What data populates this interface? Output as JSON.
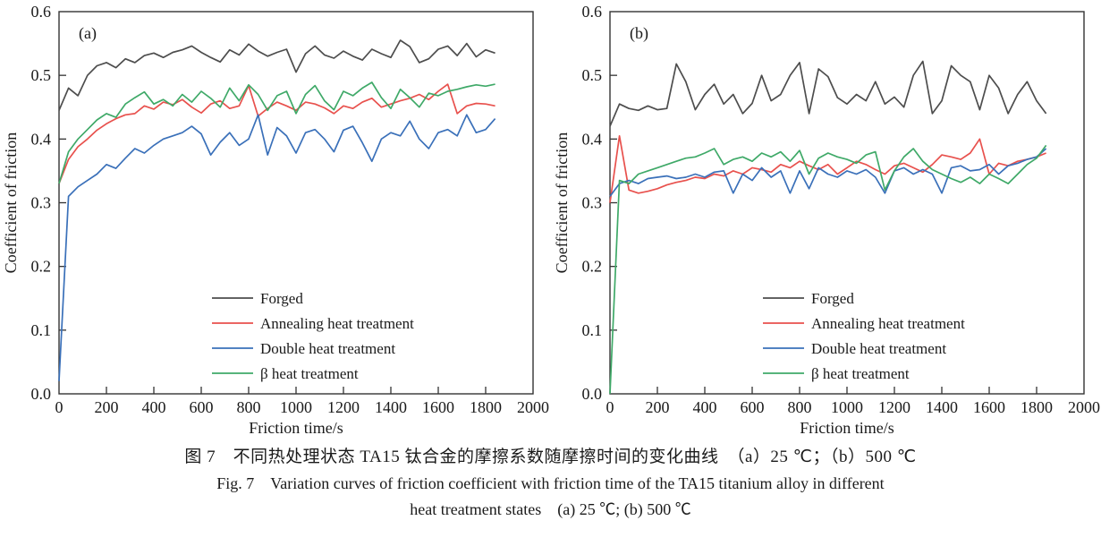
{
  "figure": {
    "caption_zh": "图 7　不同热处理状态 TA15 钛合金的摩擦系数随摩擦时间的变化曲线　（a）25 ℃；（b）500 ℃",
    "caption_en_line1": "Fig. 7　Variation curves of friction coefficient with friction time of the TA15 titanium alloy in different",
    "caption_en_line2": "heat treatment states　(a) 25 ℃; (b) 500 ℃"
  },
  "colors": {
    "axis": "#333333",
    "forged": "#4d4d4d",
    "annealing": "#e8514d",
    "double": "#3a70b9",
    "beta": "#3fa968"
  },
  "chart_data": [
    {
      "type": "line",
      "panel_label": "(a)",
      "xlabel": "Friction time/s",
      "ylabel": "Coefficient of friction",
      "xlim": [
        0,
        2000
      ],
      "ylim": [
        0.0,
        0.6
      ],
      "xticks": [
        0,
        200,
        400,
        600,
        800,
        1000,
        1200,
        1400,
        1600,
        1800,
        2000
      ],
      "yticks": [
        0.0,
        0.1,
        0.2,
        0.3,
        0.4,
        0.5,
        0.6
      ],
      "grid": false,
      "legend_position": "inside-lower-middle",
      "x": [
        0,
        40,
        80,
        120,
        160,
        200,
        240,
        280,
        320,
        360,
        400,
        440,
        480,
        520,
        560,
        600,
        640,
        680,
        720,
        760,
        800,
        840,
        880,
        920,
        960,
        1000,
        1040,
        1080,
        1120,
        1160,
        1200,
        1240,
        1280,
        1320,
        1360,
        1400,
        1440,
        1480,
        1520,
        1560,
        1600,
        1640,
        1680,
        1720,
        1760,
        1800,
        1840
      ],
      "series": [
        {
          "name": "Forged",
          "color": "#4d4d4d",
          "values": [
            0.445,
            0.48,
            0.468,
            0.5,
            0.515,
            0.52,
            0.512,
            0.526,
            0.52,
            0.531,
            0.535,
            0.528,
            0.536,
            0.54,
            0.546,
            0.536,
            0.528,
            0.521,
            0.54,
            0.532,
            0.549,
            0.538,
            0.53,
            0.536,
            0.541,
            0.505,
            0.534,
            0.546,
            0.532,
            0.527,
            0.538,
            0.53,
            0.524,
            0.541,
            0.534,
            0.528,
            0.555,
            0.545,
            0.52,
            0.526,
            0.541,
            0.546,
            0.531,
            0.55,
            0.529,
            0.54,
            0.535
          ]
        },
        {
          "name": "Annealing heat treatment",
          "color": "#e8514d",
          "values": [
            0.33,
            0.368,
            0.388,
            0.4,
            0.414,
            0.424,
            0.432,
            0.438,
            0.44,
            0.452,
            0.447,
            0.458,
            0.454,
            0.462,
            0.45,
            0.441,
            0.455,
            0.46,
            0.448,
            0.452,
            0.484,
            0.436,
            0.448,
            0.458,
            0.452,
            0.445,
            0.458,
            0.455,
            0.449,
            0.44,
            0.452,
            0.448,
            0.458,
            0.464,
            0.45,
            0.455,
            0.46,
            0.464,
            0.47,
            0.462,
            0.475,
            0.486,
            0.44,
            0.452,
            0.456,
            0.455,
            0.452
          ]
        },
        {
          "name": "Double heat treatment",
          "color": "#3a70b9",
          "values": [
            0.02,
            0.31,
            0.325,
            0.335,
            0.345,
            0.36,
            0.354,
            0.37,
            0.385,
            0.378,
            0.39,
            0.4,
            0.405,
            0.41,
            0.42,
            0.408,
            0.375,
            0.395,
            0.41,
            0.39,
            0.4,
            0.438,
            0.375,
            0.418,
            0.405,
            0.378,
            0.41,
            0.415,
            0.4,
            0.38,
            0.414,
            0.42,
            0.394,
            0.365,
            0.4,
            0.41,
            0.405,
            0.428,
            0.4,
            0.385,
            0.41,
            0.415,
            0.405,
            0.438,
            0.41,
            0.415,
            0.432
          ]
        },
        {
          "name": "β heat treatment",
          "color": "#3fa968",
          "values": [
            0.33,
            0.38,
            0.4,
            0.415,
            0.43,
            0.44,
            0.434,
            0.455,
            0.465,
            0.474,
            0.455,
            0.462,
            0.452,
            0.47,
            0.458,
            0.475,
            0.464,
            0.45,
            0.48,
            0.46,
            0.485,
            0.47,
            0.445,
            0.468,
            0.475,
            0.44,
            0.47,
            0.484,
            0.46,
            0.446,
            0.475,
            0.468,
            0.48,
            0.489,
            0.465,
            0.448,
            0.478,
            0.465,
            0.45,
            0.472,
            0.468,
            0.475,
            0.478,
            0.482,
            0.485,
            0.483,
            0.486
          ]
        }
      ]
    },
    {
      "type": "line",
      "panel_label": "(b)",
      "xlabel": "Friction time/s",
      "ylabel": "Coefficient of friction",
      "xlim": [
        0,
        2000
      ],
      "ylim": [
        0.0,
        0.6
      ],
      "xticks": [
        0,
        200,
        400,
        600,
        800,
        1000,
        1200,
        1400,
        1600,
        1800,
        2000
      ],
      "yticks": [
        0.0,
        0.1,
        0.2,
        0.3,
        0.4,
        0.5,
        0.6
      ],
      "grid": false,
      "legend_position": "inside-lower-middle",
      "x": [
        0,
        40,
        80,
        120,
        160,
        200,
        240,
        280,
        320,
        360,
        400,
        440,
        480,
        520,
        560,
        600,
        640,
        680,
        720,
        760,
        800,
        840,
        880,
        920,
        960,
        1000,
        1040,
        1080,
        1120,
        1160,
        1200,
        1240,
        1280,
        1320,
        1360,
        1400,
        1440,
        1480,
        1520,
        1560,
        1600,
        1640,
        1680,
        1720,
        1760,
        1800,
        1840
      ],
      "series": [
        {
          "name": "Forged",
          "color": "#4d4d4d",
          "values": [
            0.42,
            0.455,
            0.448,
            0.445,
            0.452,
            0.446,
            0.448,
            0.518,
            0.49,
            0.446,
            0.47,
            0.486,
            0.455,
            0.47,
            0.44,
            0.456,
            0.5,
            0.46,
            0.47,
            0.5,
            0.52,
            0.44,
            0.51,
            0.498,
            0.465,
            0.455,
            0.47,
            0.46,
            0.49,
            0.455,
            0.466,
            0.45,
            0.5,
            0.522,
            0.44,
            0.46,
            0.515,
            0.5,
            0.49,
            0.446,
            0.5,
            0.48,
            0.44,
            0.47,
            0.49,
            0.46,
            0.44
          ]
        },
        {
          "name": "Annealing heat treatment",
          "color": "#e8514d",
          "values": [
            0.3,
            0.405,
            0.32,
            0.315,
            0.318,
            0.322,
            0.328,
            0.332,
            0.335,
            0.34,
            0.338,
            0.345,
            0.342,
            0.35,
            0.345,
            0.355,
            0.352,
            0.348,
            0.36,
            0.355,
            0.365,
            0.358,
            0.352,
            0.36,
            0.345,
            0.355,
            0.365,
            0.36,
            0.352,
            0.345,
            0.358,
            0.362,
            0.355,
            0.348,
            0.36,
            0.375,
            0.372,
            0.368,
            0.378,
            0.4,
            0.345,
            0.362,
            0.358,
            0.365,
            0.368,
            0.372,
            0.378
          ]
        },
        {
          "name": "Double heat treatment",
          "color": "#3a70b9",
          "values": [
            0.31,
            0.33,
            0.335,
            0.33,
            0.338,
            0.34,
            0.342,
            0.338,
            0.34,
            0.345,
            0.34,
            0.348,
            0.35,
            0.315,
            0.345,
            0.335,
            0.355,
            0.34,
            0.35,
            0.315,
            0.35,
            0.322,
            0.355,
            0.345,
            0.34,
            0.35,
            0.345,
            0.352,
            0.34,
            0.315,
            0.35,
            0.355,
            0.345,
            0.352,
            0.345,
            0.315,
            0.355,
            0.358,
            0.35,
            0.352,
            0.36,
            0.345,
            0.358,
            0.362,
            0.368,
            0.372,
            0.385
          ]
        },
        {
          "name": "β heat treatment",
          "color": "#3fa968",
          "values": [
            0.0,
            0.335,
            0.33,
            0.345,
            0.35,
            0.355,
            0.36,
            0.365,
            0.37,
            0.372,
            0.378,
            0.385,
            0.36,
            0.368,
            0.372,
            0.365,
            0.378,
            0.372,
            0.38,
            0.365,
            0.382,
            0.345,
            0.37,
            0.378,
            0.372,
            0.368,
            0.362,
            0.375,
            0.38,
            0.32,
            0.35,
            0.372,
            0.385,
            0.365,
            0.352,
            0.345,
            0.338,
            0.332,
            0.34,
            0.33,
            0.345,
            0.338,
            0.33,
            0.345,
            0.36,
            0.37,
            0.39
          ]
        }
      ]
    }
  ]
}
